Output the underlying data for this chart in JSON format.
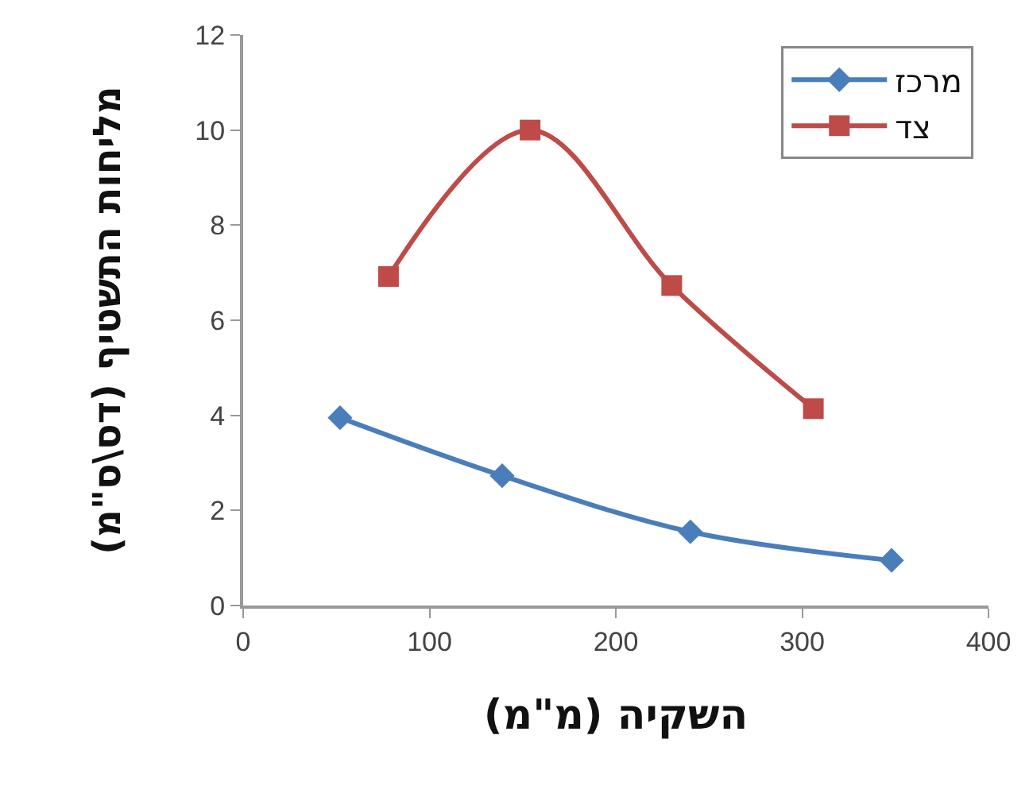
{
  "chart_data": {
    "type": "line",
    "xlabel": "השקיה (מ\"מ)",
    "ylabel": "מליחות התשטיף (דס\\ס\"מ)",
    "xlim": [
      0,
      400
    ],
    "xticks": [
      0,
      100,
      200,
      300,
      400
    ],
    "ylim": [
      0,
      12
    ],
    "yticks": [
      0,
      2,
      4,
      6,
      8,
      10,
      12
    ],
    "grid": false,
    "legend": "top right",
    "line_style": "solid",
    "series": [
      {
        "name": "מרכז",
        "color": "#4a7ebb",
        "marker": "diamond",
        "x": [
          52,
          139,
          240,
          348
        ],
        "values": [
          3.95,
          2.73,
          1.55,
          0.95
        ]
      },
      {
        "name": "צד",
        "color": "#be4b48",
        "marker": "square",
        "x": [
          78,
          154,
          230,
          306
        ],
        "values": [
          6.92,
          10,
          6.73,
          4.14
        ]
      }
    ]
  }
}
